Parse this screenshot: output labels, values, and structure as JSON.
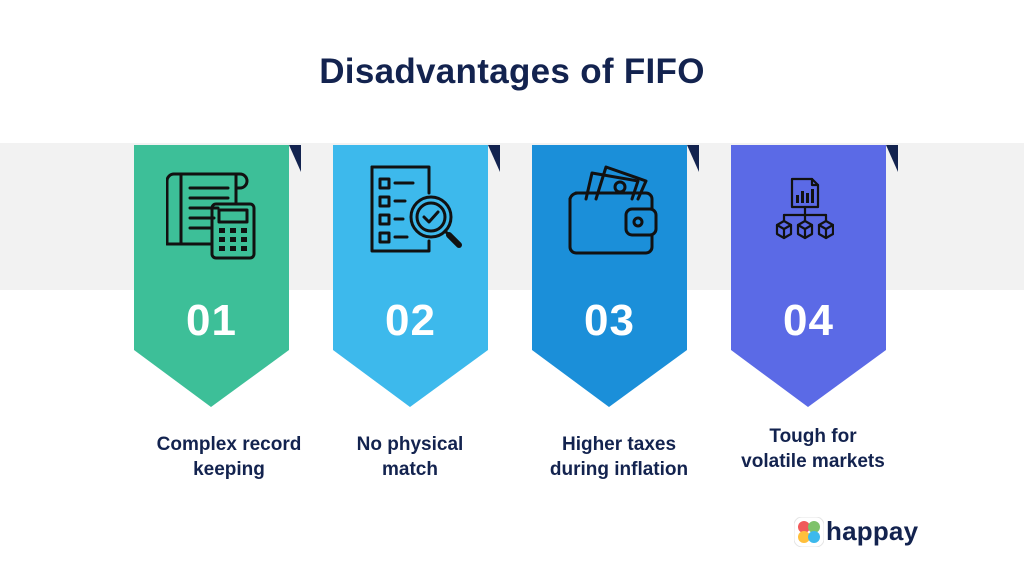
{
  "title": "Disadvantages  of FIFO",
  "steps": [
    {
      "number": "01",
      "caption_line1": "Complex record",
      "caption_line2": "keeping",
      "icon": "ledger-calculator-icon",
      "color": "#3dbf98"
    },
    {
      "number": "02",
      "caption_line1": "No physical",
      "caption_line2": "match",
      "icon": "checklist-magnifier-icon",
      "color": "#3db9ec"
    },
    {
      "number": "03",
      "caption_line1": "Higher taxes",
      "caption_line2": "during inflation",
      "icon": "wallet-cash-icon",
      "color": "#1b8fd9"
    },
    {
      "number": "04",
      "caption_line1": "Tough for",
      "caption_line2": "volatile markets",
      "icon": "report-network-icon",
      "color": "#5b6ae6"
    }
  ],
  "brand": {
    "name": "happay",
    "logo": "happay-logo"
  },
  "colors": {
    "title": "#13234f",
    "band": "#f2f2f2",
    "fold": "#13234f"
  }
}
